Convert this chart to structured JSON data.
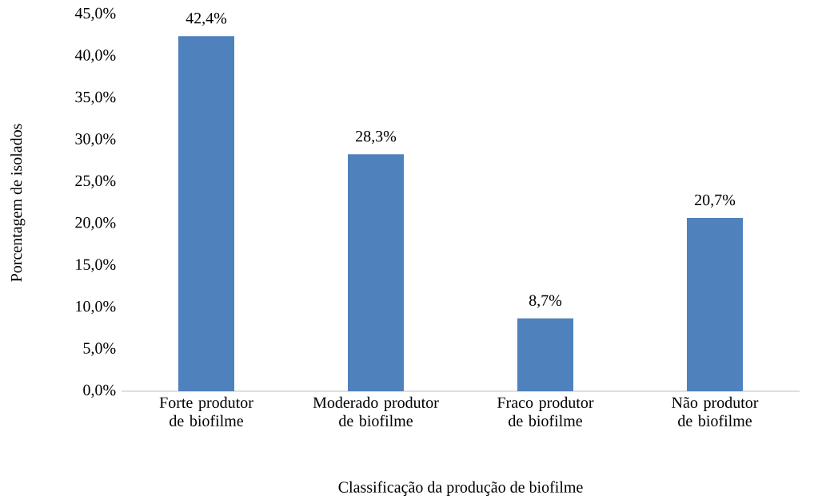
{
  "chart_data": {
    "type": "bar",
    "xlabel": "Classificação da produção de biofilme",
    "ylabel": "Porcentagem de isolados",
    "categories": [
      "Forte produtor de biofilme",
      "Moderado produtor de biofilme",
      "Fraco produtor de biofilme",
      "Não produtor de biofilme"
    ],
    "values": [
      42.4,
      28.3,
      8.7,
      20.7
    ],
    "value_labels": [
      "42,4%",
      "28,3%",
      "8,7%",
      "20,7%"
    ],
    "color": "#4f81bd",
    "ylim": [
      0,
      45
    ],
    "yticks": [
      {
        "value": 0,
        "label": "0,0%"
      },
      {
        "value": 5,
        "label": "5,0%"
      },
      {
        "value": 10,
        "label": "10,0%"
      },
      {
        "value": 15,
        "label": "15,0%"
      },
      {
        "value": 20,
        "label": "20,0%"
      },
      {
        "value": 25,
        "label": "25,0%"
      },
      {
        "value": 30,
        "label": "30,0%"
      },
      {
        "value": 35,
        "label": "35,0%"
      },
      {
        "value": 40,
        "label": "40,0%"
      },
      {
        "value": 45,
        "label": "45,0%"
      }
    ]
  }
}
